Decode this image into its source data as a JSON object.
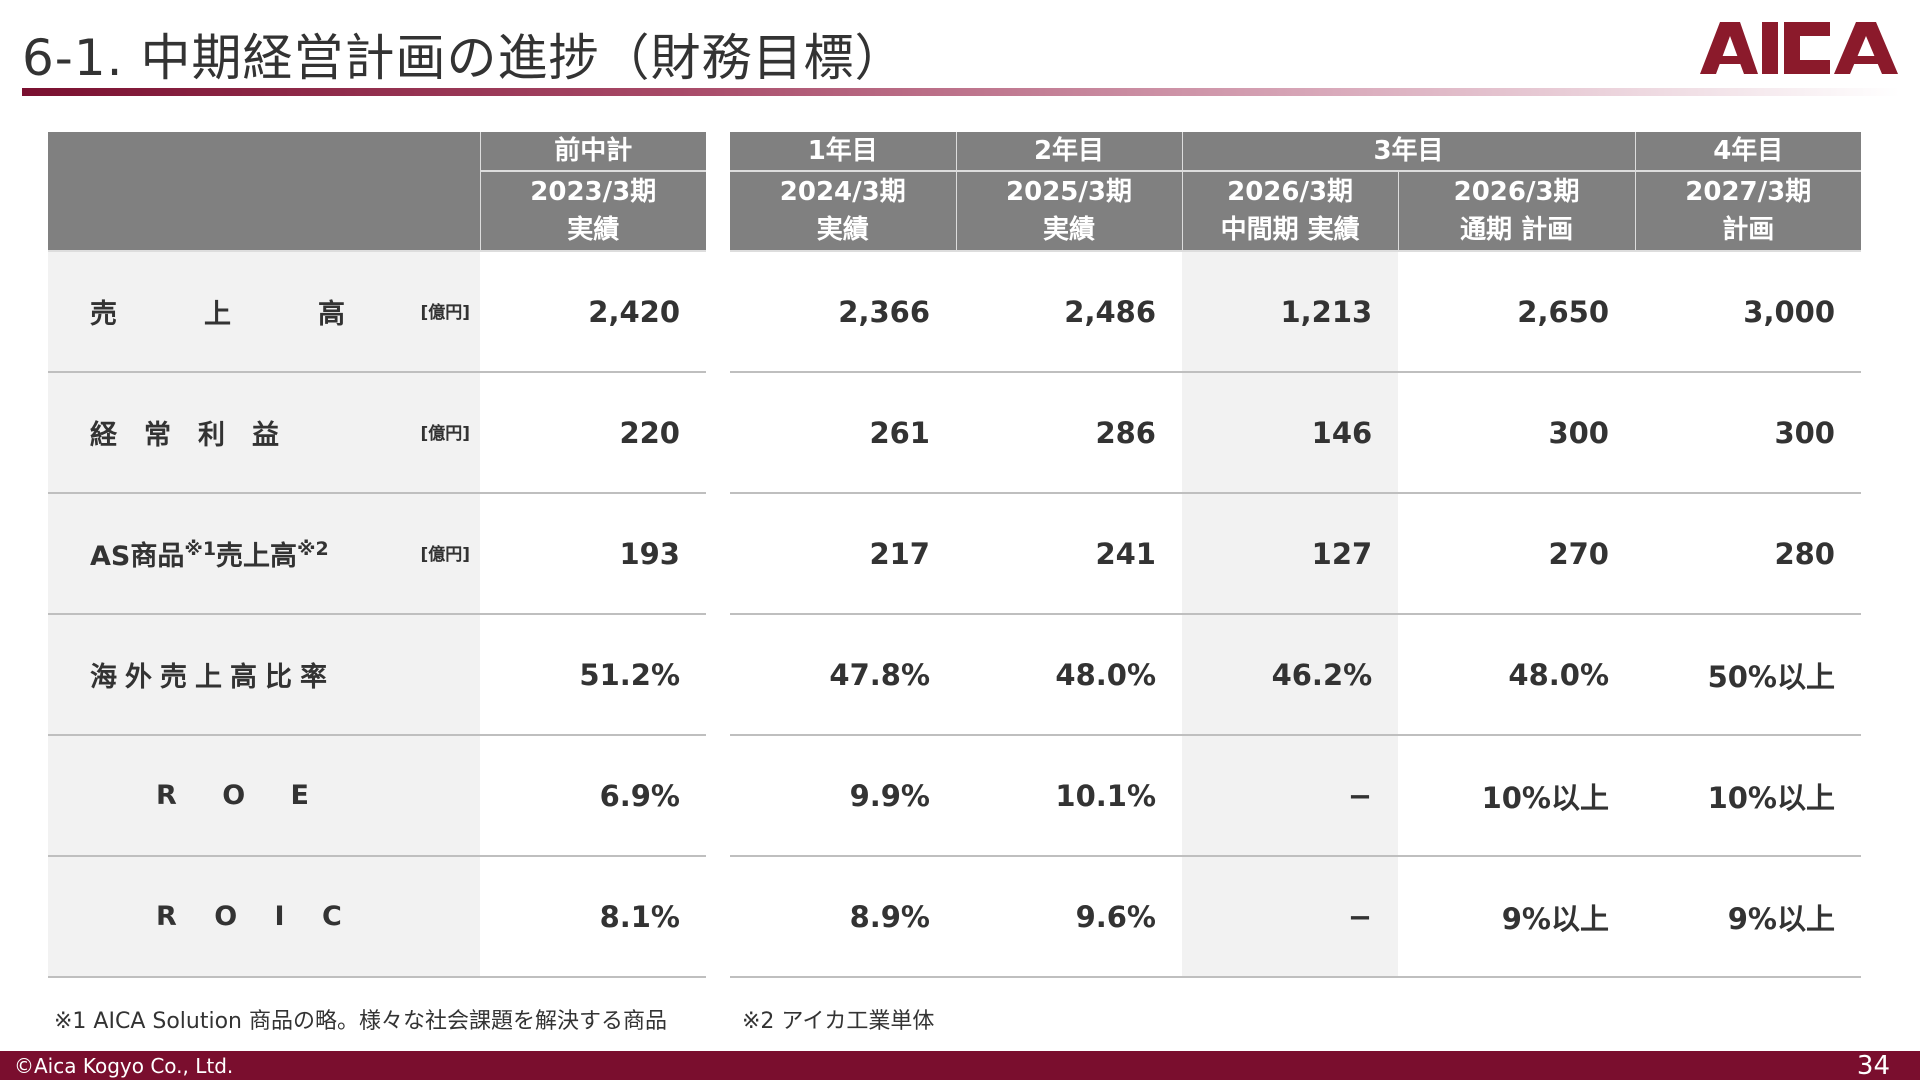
{
  "title": "6-1. 中期経営計画の進捗（財務目標）",
  "logo": {
    "text": "AICA",
    "color": "#8b1a2b"
  },
  "colors": {
    "header_bg": "#808080",
    "label_bg": "#f2f2f2",
    "footer_bg": "#7a0e2e"
  },
  "unit": "[億円]",
  "left_table": {
    "header": {
      "group": "前中計",
      "period": "2023/3期",
      "type": "実績"
    },
    "rows": [
      {
        "label": "売　上　高",
        "unit": true,
        "value": "2,420"
      },
      {
        "label": "経　常　利　益",
        "unit": true,
        "value": "220"
      },
      {
        "label": "AS商品",
        "sup1": "※1",
        "label2": "売上高",
        "sup2": "※2",
        "unit": true,
        "value": "193"
      },
      {
        "label": "海外売上高比率",
        "value": "51.2%"
      },
      {
        "label": "R O E",
        "value": "6.9%"
      },
      {
        "label": "R O I C",
        "value": "8.1%"
      }
    ]
  },
  "right_table": {
    "groups": [
      "1年目",
      "2年目",
      "3年目",
      "4年目"
    ],
    "columns": [
      {
        "period": "2024/3期",
        "type": "実績"
      },
      {
        "period": "2025/3期",
        "type": "実績"
      },
      {
        "period": "2026/3期",
        "type": "中間期 実績"
      },
      {
        "period": "2026/3期",
        "type": "通期 計画"
      },
      {
        "period": "2027/3期",
        "type": "計画"
      }
    ],
    "rows": [
      [
        "2,366",
        "2,486",
        "1,213",
        "2,650",
        "3,000"
      ],
      [
        "261",
        "286",
        "146",
        "300",
        "300"
      ],
      [
        "217",
        "241",
        "127",
        "270",
        "280"
      ],
      [
        "47.8%",
        "48.0%",
        "46.2%",
        "48.0%",
        "50%以上"
      ],
      [
        "9.9%",
        "10.1%",
        "−",
        "10%以上",
        "10%以上"
      ],
      [
        "8.9%",
        "9.6%",
        "−",
        "9%以上",
        "9%以上"
      ]
    ]
  },
  "footnotes": [
    "※1 AICA Solution 商品の略。様々な社会課題を解決する商品",
    "※2 アイカ工業単体"
  ],
  "footer": {
    "copyright": "©Aica Kogyo Co., Ltd.",
    "page": "34"
  }
}
